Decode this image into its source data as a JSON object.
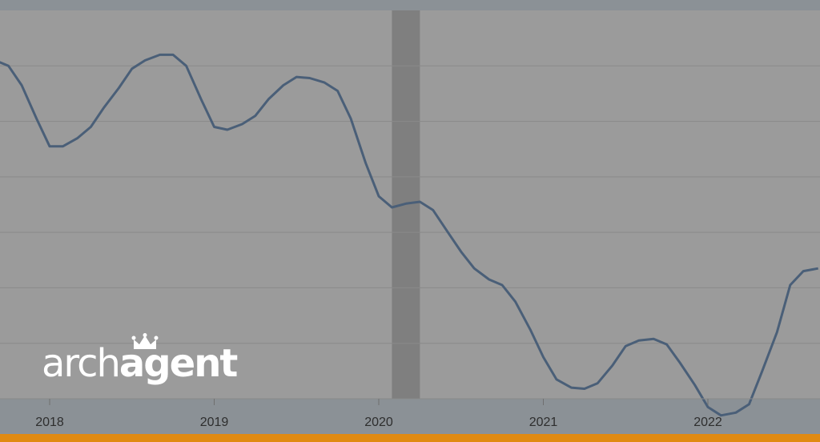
{
  "colors": {
    "frame": "#8b9196",
    "plot_background": "#9b9b9b",
    "gridline": "#8a8a8a",
    "recession_shade": "#7f7f7f",
    "line": "#4a5f78",
    "tick_label": "#2e2e2e",
    "accent_bar": "#e08a12",
    "logo": "#ffffff"
  },
  "logo": {
    "text_light": "arch",
    "text_bold": "agent",
    "icon": "crown-icon"
  },
  "chart_data": {
    "type": "line",
    "title": "",
    "xlabel": "",
    "ylabel": "",
    "x_tick_labels": [
      "2018",
      "2019",
      "2020",
      "2021",
      "2022"
    ],
    "grid": true,
    "legend": "none",
    "y_tick_labels": [],
    "ylim": [
      0,
      7
    ],
    "shaded_ranges": [
      {
        "start": 2020.08,
        "end": 2020.25
      }
    ],
    "series": [
      {
        "x": [
          2017.67,
          2017.75,
          2017.83,
          2017.92,
          2018.0,
          2018.08,
          2018.17,
          2018.25,
          2018.33,
          2018.42,
          2018.5,
          2018.58,
          2018.67,
          2018.75,
          2018.83,
          2018.92,
          2019.0,
          2019.08,
          2019.17,
          2019.25,
          2019.33,
          2019.42,
          2019.5,
          2019.58,
          2019.67,
          2019.75,
          2019.83,
          2019.92,
          2020.0,
          2020.08,
          2020.17,
          2020.25,
          2020.33,
          2020.42,
          2020.5,
          2020.58,
          2020.67,
          2020.75,
          2020.83,
          2020.92,
          2021.0,
          2021.08,
          2021.17,
          2021.25,
          2021.33,
          2021.42,
          2021.5,
          2021.58,
          2021.67,
          2021.75,
          2021.83,
          2021.92,
          2022.0,
          2022.08,
          2022.17,
          2022.25,
          2022.33,
          2022.42,
          2022.5,
          2022.58,
          2022.67
        ],
        "values": [
          6.1,
          6.0,
          5.65,
          5.05,
          4.55,
          4.55,
          4.7,
          4.9,
          5.25,
          5.6,
          5.95,
          6.1,
          6.2,
          6.2,
          6.0,
          5.4,
          4.9,
          4.85,
          4.95,
          5.1,
          5.4,
          5.65,
          5.8,
          5.78,
          5.7,
          5.55,
          5.05,
          4.25,
          3.65,
          3.45,
          3.52,
          3.55,
          3.4,
          3.0,
          2.65,
          2.35,
          2.15,
          2.05,
          1.75,
          1.25,
          0.75,
          0.35,
          0.2,
          0.18,
          0.28,
          0.6,
          0.95,
          1.05,
          1.08,
          0.98,
          0.65,
          0.25,
          -0.15,
          -0.3,
          -0.25,
          -0.1,
          0.5,
          1.2,
          2.05,
          2.3,
          2.35
        ]
      }
    ]
  }
}
